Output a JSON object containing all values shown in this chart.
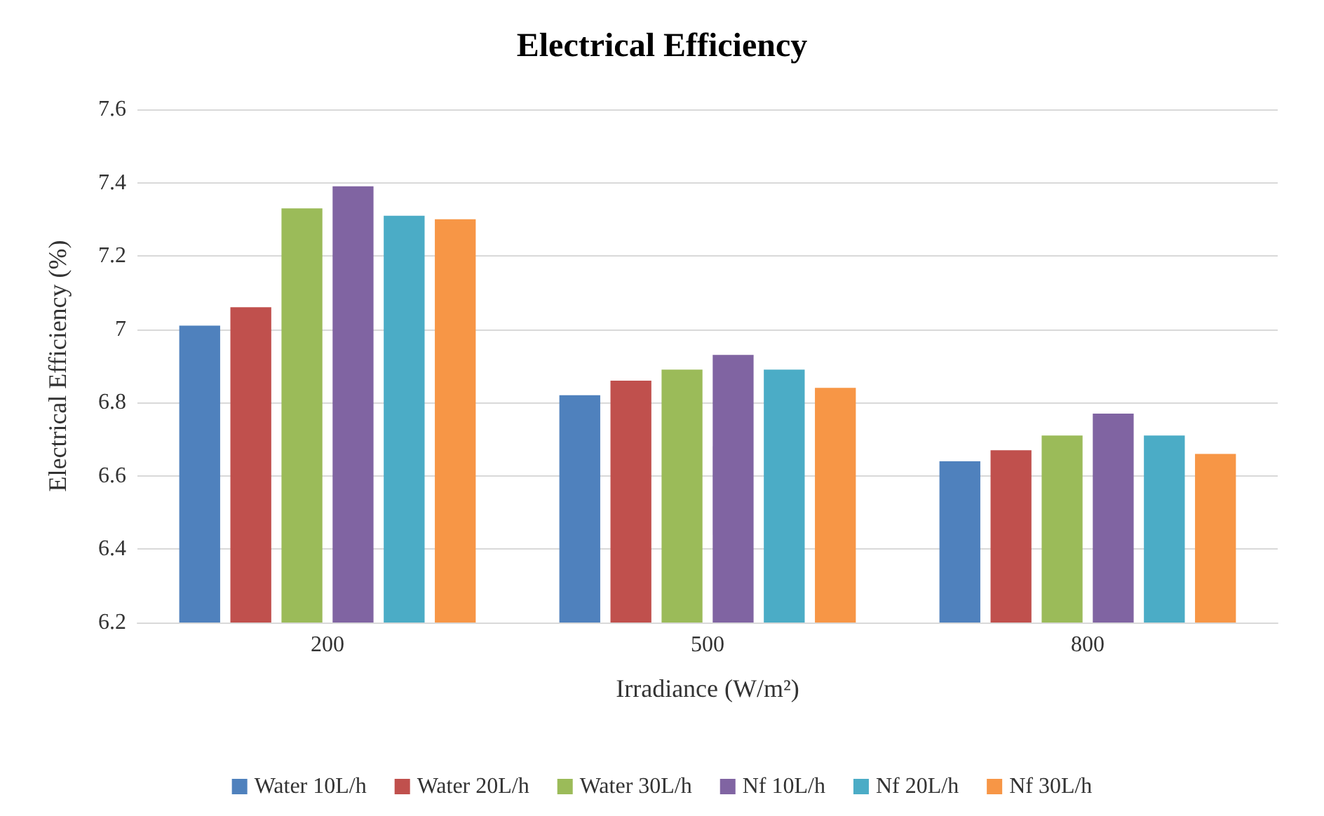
{
  "chart_data": {
    "type": "bar",
    "title": "Electrical Efficiency",
    "xlabel": "Irradiance (W/m²)",
    "ylabel": "Electrical Efficiency (%)",
    "categories": [
      "200",
      "500",
      "800"
    ],
    "series": [
      {
        "name": "Water 10L/h",
        "color": "#4f81bd",
        "values": [
          7.01,
          6.82,
          6.64
        ]
      },
      {
        "name": "Water 20L/h",
        "color": "#c0504d",
        "values": [
          7.06,
          6.86,
          6.67
        ]
      },
      {
        "name": "Water 30L/h",
        "color": "#9bbb59",
        "values": [
          7.33,
          6.89,
          6.71
        ]
      },
      {
        "name": "Nf 10L/h",
        "color": "#8064a2",
        "values": [
          7.39,
          6.93,
          6.77
        ]
      },
      {
        "name": "Nf 20L/h",
        "color": "#4bacc6",
        "values": [
          7.31,
          6.89,
          6.71
        ]
      },
      {
        "name": "Nf 30L/h",
        "color": "#f79646",
        "values": [
          7.3,
          6.84,
          6.66
        ]
      }
    ],
    "ylim": [
      6.2,
      7.6
    ],
    "yticks": [
      6.2,
      6.4,
      6.6,
      6.8,
      7,
      7.2,
      7.4,
      7.6
    ],
    "grid": "y",
    "legend": "bottom"
  }
}
